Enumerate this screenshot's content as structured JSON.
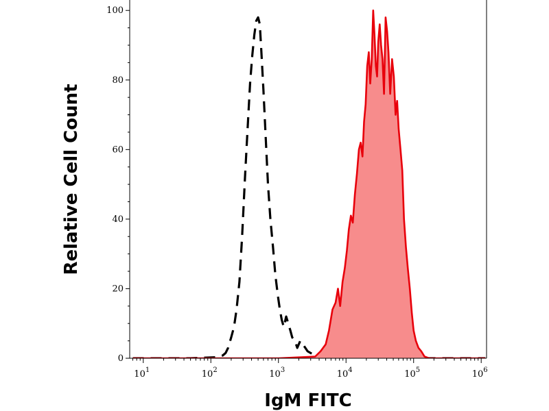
{
  "chart_data": {
    "type": "area",
    "title": "",
    "xlabel": "IgM FITC",
    "ylabel": "Relative Cell Count",
    "x_scale": "log",
    "xlim": [
      6.3,
      1200000
    ],
    "ylim": [
      0,
      103
    ],
    "grid": false,
    "legend": "none",
    "x_ticks": [
      {
        "value": 10,
        "base": "10",
        "exp": "1"
      },
      {
        "value": 100,
        "base": "10",
        "exp": "2"
      },
      {
        "value": 1000,
        "base": "10",
        "exp": "3"
      },
      {
        "value": 10000,
        "base": "10",
        "exp": "4"
      },
      {
        "value": 100000,
        "base": "10",
        "exp": "5"
      },
      {
        "value": 1000000,
        "base": "10",
        "exp": "6"
      }
    ],
    "y_ticks": [
      0,
      20,
      40,
      60,
      80,
      100
    ],
    "y_tick_labels": [
      "0",
      "20",
      "40",
      "60",
      "80",
      "100"
    ],
    "series": [
      {
        "style": "dashed",
        "color": "#000000",
        "fill": "none",
        "x": [
          7,
          50,
          120,
          150,
          165,
          180,
          200,
          220,
          240,
          265,
          290,
          320,
          350,
          380,
          410,
          440,
          470,
          500,
          530,
          560,
          600,
          650,
          700,
          760,
          830,
          900,
          980,
          1050,
          1120,
          1200,
          1300,
          1400,
          1500,
          1600,
          1750,
          1900,
          2100,
          2300,
          2500,
          2700,
          3000,
          3300,
          3600,
          4000,
          4500,
          5500,
          8000,
          20000,
          1150000
        ],
        "y": [
          0,
          0,
          0.3,
          0.8,
          1.5,
          3,
          6,
          9,
          14,
          22,
          35,
          52,
          66,
          79,
          87,
          93,
          97,
          98,
          96,
          88,
          77,
          63,
          50,
          40,
          32,
          24,
          18,
          14,
          11,
          9,
          12,
          10,
          8,
          6,
          5,
          3,
          5,
          4,
          3,
          2,
          1.5,
          1,
          0.5,
          0.3,
          0,
          0,
          0,
          0,
          0
        ]
      },
      {
        "style": "solid",
        "color": "#e8000b",
        "fill": "#f78c8c",
        "x": [
          7,
          1000,
          3500,
          4200,
          5000,
          5600,
          6300,
          7000,
          7600,
          8200,
          8900,
          9600,
          10300,
          11000,
          11800,
          12600,
          13500,
          14500,
          15500,
          16500,
          17500,
          18500,
          19500,
          20600,
          21700,
          22800,
          24000,
          25200,
          26400,
          27600,
          28800,
          30000,
          31500,
          33000,
          34700,
          36500,
          38500,
          40500,
          42500,
          45000,
          48000,
          51000,
          54000,
          57000,
          60000,
          64000,
          68000,
          72000,
          77000,
          82000,
          88000,
          94000,
          100000,
          108000,
          118000,
          130000,
          145000,
          170000,
          1150000
        ],
        "y": [
          0,
          0,
          0.5,
          2,
          4,
          8,
          14,
          16,
          20,
          15,
          22,
          26,
          31,
          37,
          41,
          39,
          47,
          53,
          60,
          62,
          58,
          68,
          73,
          84,
          88,
          79,
          86,
          100,
          93,
          84,
          81,
          91,
          96,
          90,
          86,
          76,
          98,
          94,
          88,
          76,
          86,
          81,
          70,
          74,
          66,
          60,
          54,
          40,
          32,
          26,
          20,
          13,
          8,
          5,
          3,
          2,
          0.5,
          0,
          0
        ]
      }
    ]
  }
}
